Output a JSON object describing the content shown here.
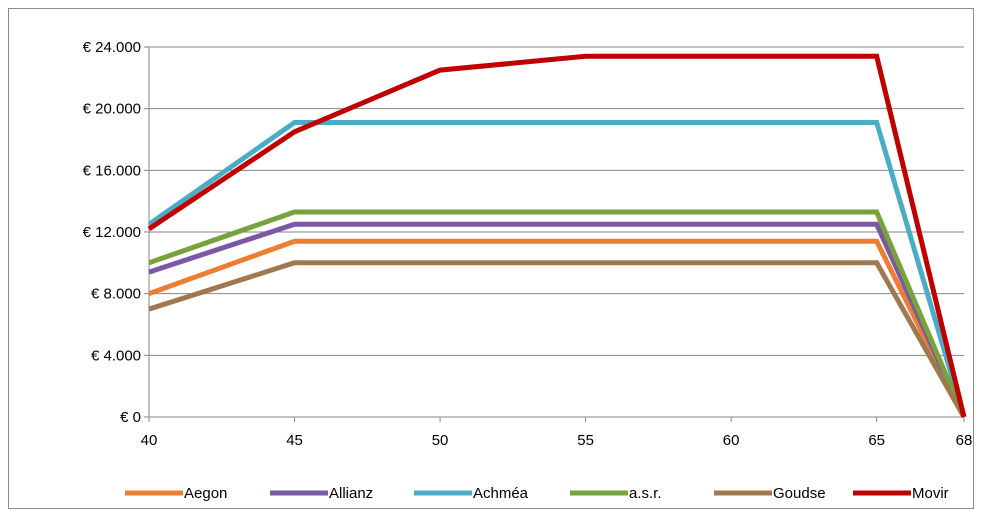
{
  "chart_data": {
    "type": "line",
    "title": "",
    "xlabel": "",
    "ylabel": "",
    "x": [
      40,
      45,
      50,
      55,
      60,
      65,
      68
    ],
    "x_tick_labels": [
      "40",
      "45",
      "50",
      "55",
      "60",
      "65",
      "68"
    ],
    "ylim": [
      0,
      24000
    ],
    "y_ticks": [
      0,
      4000,
      8000,
      12000,
      16000,
      20000,
      24000
    ],
    "y_tick_labels": [
      "€ 0",
      "€ 4.000",
      "€ 8.000",
      "€ 12.000",
      "€ 16.000",
      "€ 20.000",
      "€ 24.000"
    ],
    "grid": true,
    "legend_position": "bottom",
    "series": [
      {
        "name": "Aegon",
        "color": "#ED7D31",
        "values": [
          8000,
          11400,
          11400,
          11400,
          11400,
          11400,
          0
        ]
      },
      {
        "name": "Allianz",
        "color": "#7A58A6",
        "values": [
          9400,
          12500,
          12500,
          12500,
          12500,
          12500,
          0
        ]
      },
      {
        "name": "Achméa",
        "color": "#4BACC6",
        "values": [
          12500,
          19100,
          19100,
          19100,
          19100,
          19100,
          0
        ]
      },
      {
        "name": "a.s.r.",
        "color": "#77A23C",
        "values": [
          10000,
          13300,
          13300,
          13300,
          13300,
          13300,
          0
        ]
      },
      {
        "name": "Goudse",
        "color": "#A07850",
        "values": [
          7000,
          10000,
          10000,
          10000,
          10000,
          10000,
          0
        ]
      },
      {
        "name": "Movir",
        "color": "#C00000",
        "values": [
          12200,
          18500,
          22500,
          23400,
          23400,
          23400,
          0
        ]
      }
    ]
  }
}
